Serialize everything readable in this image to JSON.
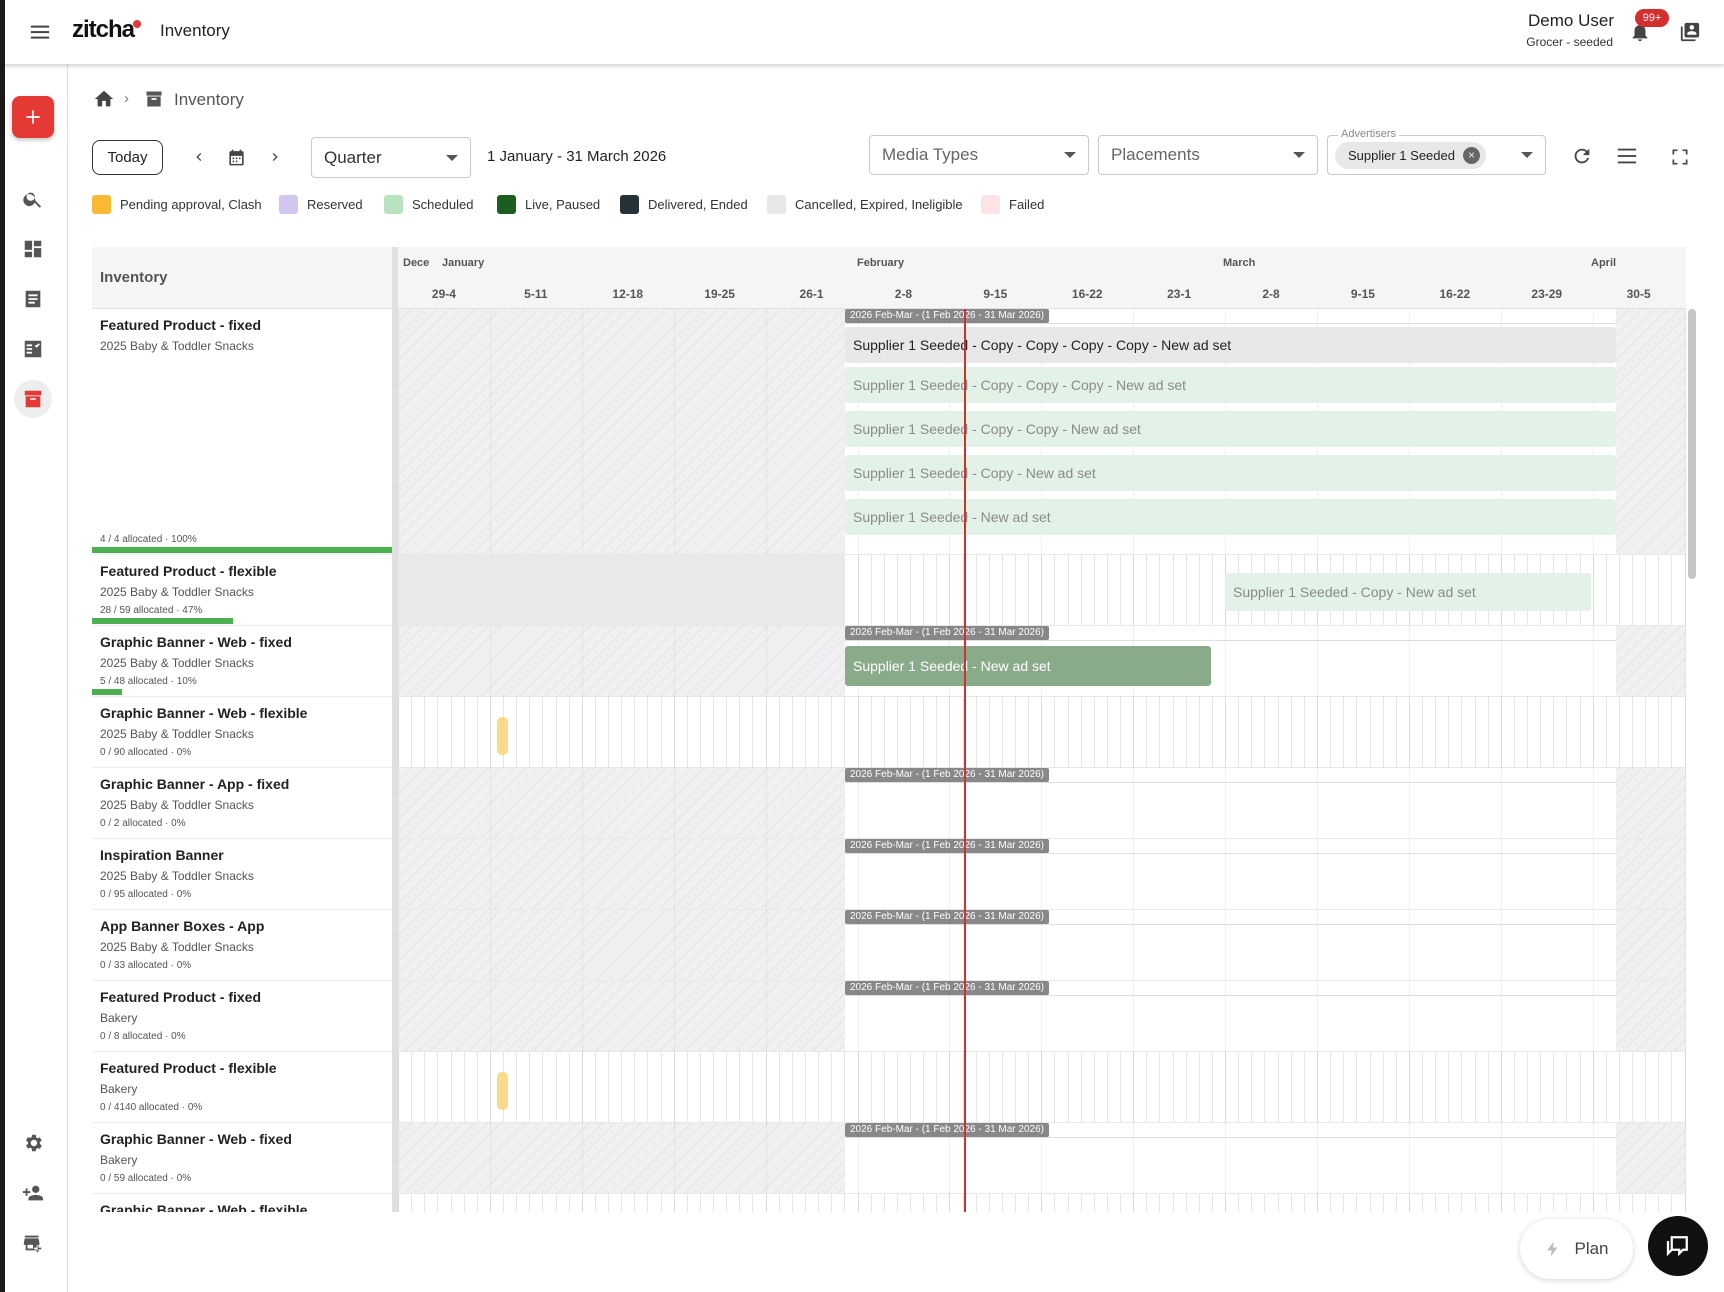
{
  "app": {
    "brand": "zitcha",
    "section": "Inventory"
  },
  "user": {
    "name": "Demo User",
    "org": "Grocer - seeded",
    "notifications": "99+"
  },
  "breadcrumb": {
    "current": "Inventory"
  },
  "toolbar": {
    "today_label": "Today",
    "period_select": "Quarter",
    "date_range": "1 January - 31 March 2026",
    "media_types_placeholder": "Media Types",
    "placements_placeholder": "Placements",
    "advertisers_label": "Advertisers",
    "advertiser_chip": "Supplier 1 Seeded"
  },
  "legend": [
    {
      "label": "Pending approval, Clash",
      "color": "#f9b934"
    },
    {
      "label": "Reserved",
      "color": "#d3c6ee"
    },
    {
      "label": "Scheduled",
      "color": "#b9e3c0"
    },
    {
      "label": "Live, Paused",
      "color": "#1b5e20"
    },
    {
      "label": "Delivered, Ended",
      "color": "#263238"
    },
    {
      "label": "Cancelled, Expired, Ineligible",
      "color": "#e7e7e7"
    },
    {
      "label": "Failed",
      "color": "#fde3e6"
    }
  ],
  "grid": {
    "header": "Inventory",
    "months": [
      "Dece",
      "January",
      "February",
      "March",
      "April"
    ],
    "weeks": [
      "29-4",
      "5-11",
      "12-18",
      "19-25",
      "26-1",
      "2-8",
      "9-15",
      "16-22",
      "23-1",
      "2-8",
      "9-15",
      "16-22",
      "23-29",
      "30-5"
    ],
    "period_tag": "2026 Feb-Mar - (1 Feb 2026 - 31 Mar 2026)"
  },
  "rows": [
    {
      "title": "Featured Product - fixed",
      "subtitle": "2025 Baby & Toddler Snacks",
      "allocated": "4 / 4 allocated · 100%",
      "pct": 100
    },
    {
      "title": "Featured Product - flexible",
      "subtitle": "2025 Baby & Toddler Snacks",
      "allocated": "28 / 59 allocated · 47%",
      "pct": 47
    },
    {
      "title": "Graphic Banner - Web - fixed",
      "subtitle": "2025 Baby & Toddler Snacks",
      "allocated": "5 / 48 allocated · 10%",
      "pct": 10
    },
    {
      "title": "Graphic Banner - Web - flexible",
      "subtitle": "2025 Baby & Toddler Snacks",
      "allocated": "0 / 90 allocated · 0%",
      "pct": 0
    },
    {
      "title": "Graphic Banner - App - fixed",
      "subtitle": "2025 Baby & Toddler Snacks",
      "allocated": "0 / 2 allocated · 0%",
      "pct": 0
    },
    {
      "title": "Inspiration Banner",
      "subtitle": "2025 Baby & Toddler Snacks",
      "allocated": "0 / 95 allocated · 0%",
      "pct": 0
    },
    {
      "title": "App Banner Boxes - App",
      "subtitle": "2025 Baby & Toddler Snacks",
      "allocated": "0 / 33 allocated · 0%",
      "pct": 0
    },
    {
      "title": "Featured Product - fixed",
      "subtitle": "Bakery",
      "allocated": "0 / 8 allocated · 0%",
      "pct": 0
    },
    {
      "title": "Featured Product - flexible",
      "subtitle": "Bakery",
      "allocated": "0 / 4140 allocated · 0%",
      "pct": 0
    },
    {
      "title": "Graphic Banner - Web - fixed",
      "subtitle": "Bakery",
      "allocated": "0 / 59 allocated · 0%",
      "pct": 0
    },
    {
      "title": "Graphic Banner - Web - flexible",
      "subtitle": "",
      "allocated": "",
      "pct": 0
    }
  ],
  "bookings": {
    "b1": "Supplier 1 Seeded - Copy - Copy - Copy - Copy - New ad set",
    "b2": "Supplier 1 Seeded - Copy - Copy - Copy - New ad set",
    "b3": "Supplier 1 Seeded - Copy - Copy - New ad set",
    "b4": "Supplier 1 Seeded - Copy - New ad set",
    "b5": "Supplier 1 Seeded - New ad set",
    "b6": "Supplier 1 Seeded - Copy - New ad set",
    "b7": "Supplier 1 Seeded - New ad set"
  },
  "plan_label": "Plan"
}
